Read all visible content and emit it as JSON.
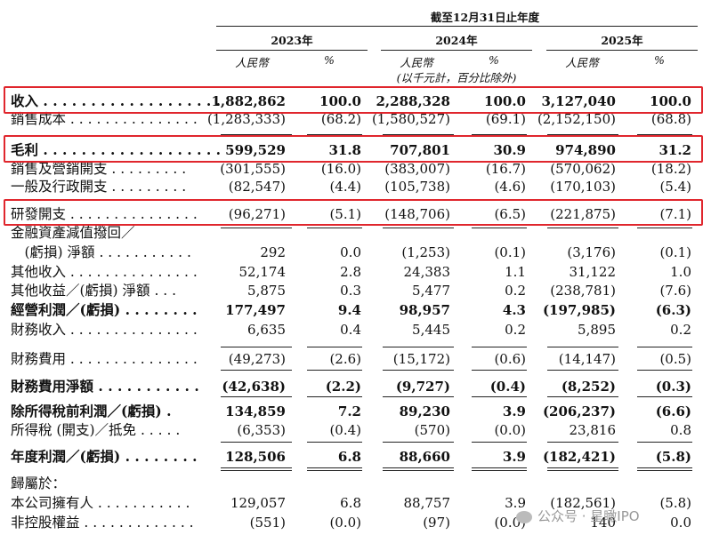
{
  "header": {
    "period_title": "截至12月31日止年度",
    "years": [
      "2023年",
      "2024年",
      "2025年"
    ],
    "currency_label": "人民幣",
    "pct_label": "%",
    "unit_note": "(以千元計，百分比除外)"
  },
  "rows": [
    {
      "label": "收入 . . . . . . . . . . . . . . . . . . .",
      "bold": true,
      "v": [
        "1,882,862",
        "100.0",
        "2,288,328",
        "100.0",
        "3,127,040",
        "100.0"
      ]
    },
    {
      "label": "銷售成本 . . . . . . . . . . . . . . .",
      "bold": false,
      "v": [
        "(1,283,333)",
        "(68.2)",
        "(1,580,527)",
        "(69.1)",
        "(2,152,150)",
        "(68.8)"
      ]
    },
    {
      "label": "毛利 . . . . . . . . . . . . . . . . . . .",
      "bold": true,
      "v": [
        "599,529",
        "31.8",
        "707,801",
        "30.9",
        "974,890",
        "31.2"
      ]
    },
    {
      "label": "銷售及營銷開支 . . . . . . . . .",
      "bold": false,
      "v": [
        "(301,555)",
        "(16.0)",
        "(383,007)",
        "(16.7)",
        "(570,062)",
        "(18.2)"
      ]
    },
    {
      "label": "一般及行政開支 . . . . . . . . .",
      "bold": false,
      "v": [
        "(82,547)",
        "(4.4)",
        "(105,738)",
        "(4.6)",
        "(170,103)",
        "(5.4)"
      ]
    },
    {
      "label": "研發開支 . . . . . . . . . . . . . . .",
      "bold": false,
      "v": [
        "(96,271)",
        "(5.1)",
        "(148,706)",
        "(6.5)",
        "(221,875)",
        "(7.1)"
      ]
    },
    {
      "label": "金融資產減值撥回／",
      "bold": false,
      "v": [
        "",
        "",
        "",
        "",
        "",
        ""
      ]
    },
    {
      "label": "　(虧損) 淨額 . . . . . . . . . . .",
      "bold": false,
      "v": [
        "292",
        "0.0",
        "(1,253)",
        "(0.1)",
        "(3,176)",
        "(0.1)"
      ]
    },
    {
      "label": "其他收入 . . . . . . . . . . . . . . .",
      "bold": false,
      "v": [
        "52,174",
        "2.8",
        "24,383",
        "1.1",
        "31,122",
        "1.0"
      ]
    },
    {
      "label": "其他收益／(虧損) 淨額 . . .",
      "bold": false,
      "v": [
        "5,875",
        "0.3",
        "5,477",
        "0.2",
        "(238,781)",
        "(7.6)"
      ]
    },
    {
      "label": "經營利潤／(虧損) . . . . . . . .",
      "bold": true,
      "v": [
        "177,497",
        "9.4",
        "98,957",
        "4.3",
        "(197,985)",
        "(6.3)"
      ]
    },
    {
      "label": "財務收入 . . . . . . . . . . . . . . .",
      "bold": false,
      "v": [
        "6,635",
        "0.4",
        "5,445",
        "0.2",
        "5,895",
        "0.2"
      ]
    },
    {
      "label": "財務費用 . . . . . . . . . . . . . . .",
      "bold": false,
      "v": [
        "(49,273)",
        "(2.6)",
        "(15,172)",
        "(0.6)",
        "(14,147)",
        "(0.5)"
      ]
    },
    {
      "label": "財務費用淨額 . . . . . . . . . . .",
      "bold": true,
      "v": [
        "(42,638)",
        "(2.2)",
        "(9,727)",
        "(0.4)",
        "(8,252)",
        "(0.3)"
      ]
    },
    {
      "label": "除所得稅前利潤／(虧損) .",
      "bold": true,
      "v": [
        "134,859",
        "7.2",
        "89,230",
        "3.9",
        "(206,237)",
        "(6.6)"
      ]
    },
    {
      "label": "所得稅 (開支)／抵免 . . . . .",
      "bold": false,
      "v": [
        "(6,353)",
        "(0.4)",
        "(570)",
        "(0.0)",
        "23,816",
        "0.8"
      ]
    },
    {
      "label": "年度利潤／(虧損) . . . . . . . .",
      "bold": true,
      "v": [
        "128,506",
        "6.8",
        "88,660",
        "3.9",
        "(182,421)",
        "(5.8)"
      ]
    },
    {
      "label": "歸屬於：",
      "bold": false,
      "v": [
        "",
        "",
        "",
        "",
        "",
        ""
      ]
    },
    {
      "label": "本公司擁有人 . . . . . . . . . . .",
      "bold": false,
      "v": [
        "129,057",
        "6.8",
        "88,757",
        "3.9",
        "(182,561)",
        "(5.8)"
      ]
    },
    {
      "label": "非控股權益 . . . . . . . . . . . . .",
      "bold": false,
      "v": [
        "(551)",
        "(0.0)",
        "(97)",
        "(0.0)",
        "140",
        "0.0"
      ]
    }
  ],
  "watermark": "公众号 · 星瞰IPO"
}
